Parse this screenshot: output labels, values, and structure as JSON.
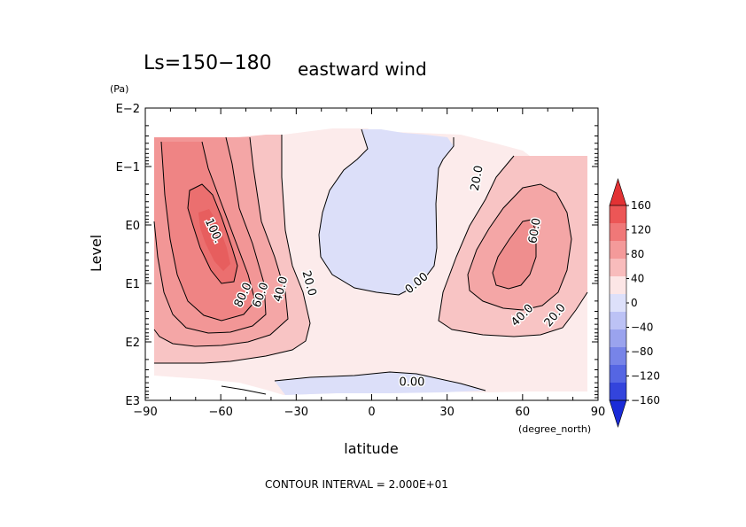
{
  "chart_data": {
    "type": "contour",
    "title": "Ls=150−180",
    "subtitle": "eastward wind",
    "xlabel": "latitude",
    "xunit": "(degree_north)",
    "ylabel": "Level",
    "yunit": "(Pa)",
    "y_scale": "log",
    "xlim": [
      -90,
      90
    ],
    "ylim_pa": [
      1000,
      0.01
    ],
    "x_ticks": [
      {
        "value": -90,
        "label": "−90"
      },
      {
        "value": -60,
        "label": "−60"
      },
      {
        "value": -30,
        "label": "−30"
      },
      {
        "value": 0,
        "label": "0"
      },
      {
        "value": 30,
        "label": "30"
      },
      {
        "value": 60,
        "label": "60"
      },
      {
        "value": 90,
        "label": "90"
      }
    ],
    "y_ticks": [
      {
        "exp": -2,
        "label": "E−2"
      },
      {
        "exp": -1,
        "label": "E−1"
      },
      {
        "exp": 0,
        "label": "E0"
      },
      {
        "exp": 1,
        "label": "E1"
      },
      {
        "exp": 2,
        "label": "E2"
      },
      {
        "exp": 3,
        "label": "E3"
      }
    ],
    "contour_interval_text": "CONTOUR INTERVAL = 2.000E+01",
    "contour_labels": [
      {
        "text": "100.",
        "lat": -63,
        "logp": 0.1,
        "rotate": 65
      },
      {
        "text": "80.0",
        "lat": -51,
        "logp": 1.2,
        "rotate": -65
      },
      {
        "text": "60.0",
        "lat": -44,
        "logp": 1.2,
        "rotate": -70
      },
      {
        "text": "40.0",
        "lat": -36,
        "logp": 1.1,
        "rotate": -75
      },
      {
        "text": "20.0",
        "lat": -25,
        "logp": 1.0,
        "rotate": 75
      },
      {
        "text": "0.00",
        "lat": 18,
        "logp": 1.0,
        "rotate": -40
      },
      {
        "text": "20.0",
        "lat": 42,
        "logp": -0.8,
        "rotate": -80
      },
      {
        "text": "60.0",
        "lat": 65,
        "logp": 0.1,
        "rotate": -80
      },
      {
        "text": "40.0",
        "lat": 60,
        "logp": 1.55,
        "rotate": -45
      },
      {
        "text": "20.0",
        "lat": 73,
        "logp": 1.55,
        "rotate": -50
      },
      {
        "text": "0.00",
        "lat": 16,
        "logp": 2.7,
        "rotate": 0
      }
    ],
    "colorbar": {
      "labels": [
        "160",
        "120",
        "80",
        "40",
        "0",
        "−40",
        "−80",
        "−120",
        "−160"
      ],
      "colors": [
        "#e23234",
        "#ec5656",
        "#f07878",
        "#f49a9a",
        "#f8bcbc",
        "#fce6e6",
        "#dde0fa",
        "#bcc2f5",
        "#9aa3ee",
        "#7784e8",
        "#5566e3",
        "#3344dc",
        "#1a2bd8"
      ]
    }
  }
}
